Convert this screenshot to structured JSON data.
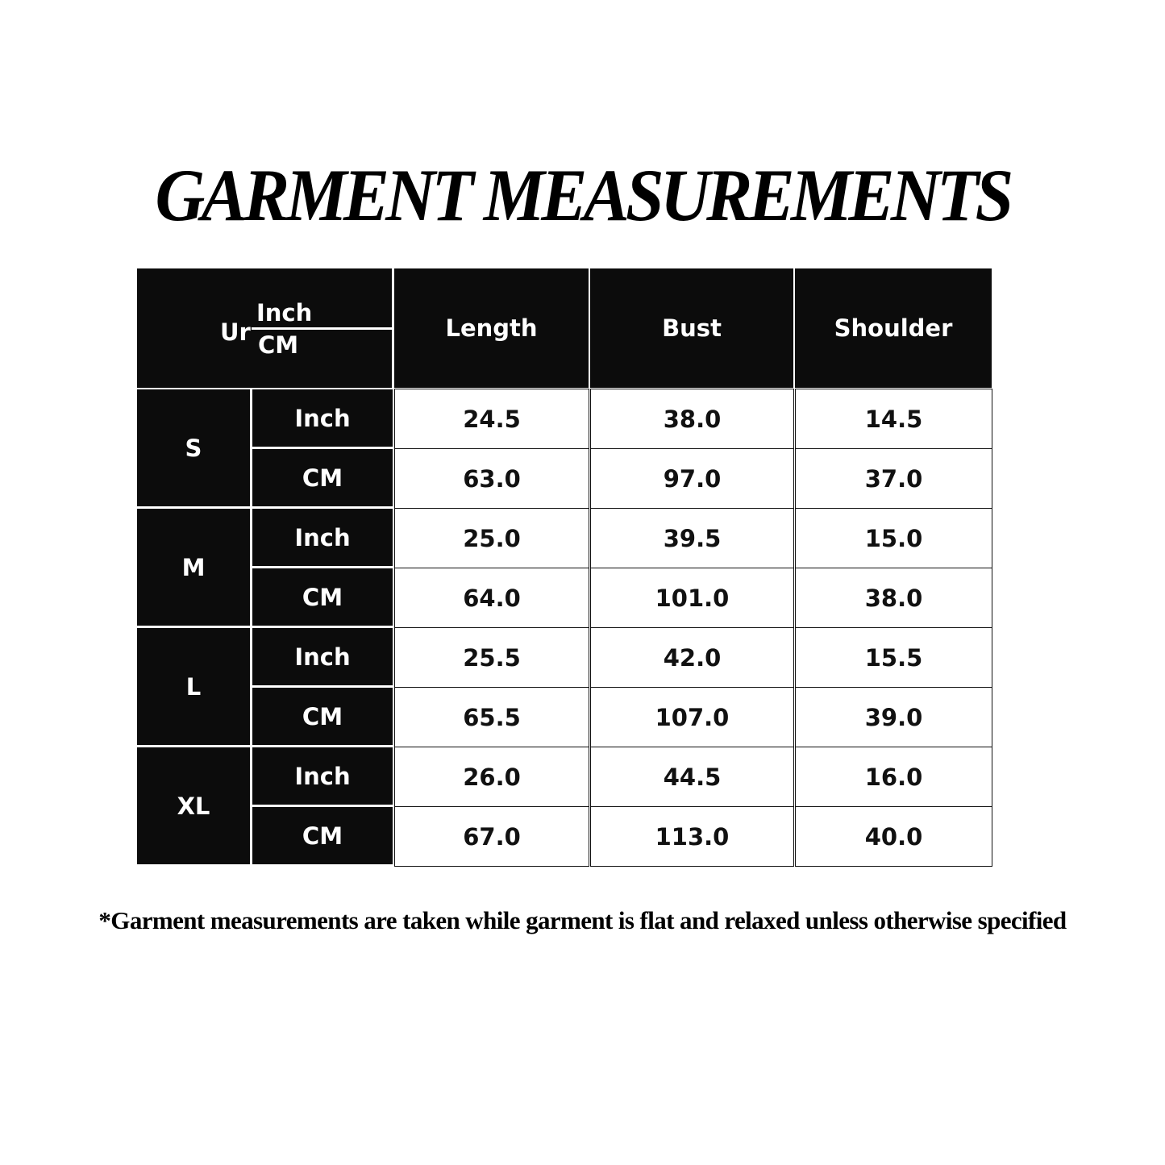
{
  "title": "GARMENT MEASUREMENTS",
  "table": {
    "corner": {
      "label": "Ur",
      "top": "Inch",
      "bottom": "CM"
    },
    "columns": [
      "Length",
      "Bust",
      "Shoulder"
    ],
    "sizes": [
      {
        "size": "S",
        "rows": [
          {
            "unit": "Inch",
            "values": [
              "24.5",
              "38.0",
              "14.5"
            ]
          },
          {
            "unit": "CM",
            "values": [
              "63.0",
              "97.0",
              "37.0"
            ]
          }
        ]
      },
      {
        "size": "M",
        "rows": [
          {
            "unit": "Inch",
            "values": [
              "25.0",
              "39.5",
              "15.0"
            ]
          },
          {
            "unit": "CM",
            "values": [
              "64.0",
              "101.0",
              "38.0"
            ]
          }
        ]
      },
      {
        "size": "L",
        "rows": [
          {
            "unit": "Inch",
            "values": [
              "25.5",
              "42.0",
              "15.5"
            ]
          },
          {
            "unit": "CM",
            "values": [
              "65.5",
              "107.0",
              "39.0"
            ]
          }
        ]
      },
      {
        "size": "XL",
        "rows": [
          {
            "unit": "Inch",
            "values": [
              "26.0",
              "44.5",
              "16.0"
            ]
          },
          {
            "unit": "CM",
            "values": [
              "67.0",
              "113.0",
              "40.0"
            ]
          }
        ]
      }
    ]
  },
  "footnote": "*Garment measurements are taken while garment is flat and relaxed unless otherwise specified",
  "colors": {
    "header_bg": "#0c0c0c",
    "header_text": "#ffffff",
    "cell_bg": "#ffffff",
    "cell_text": "#111111"
  }
}
